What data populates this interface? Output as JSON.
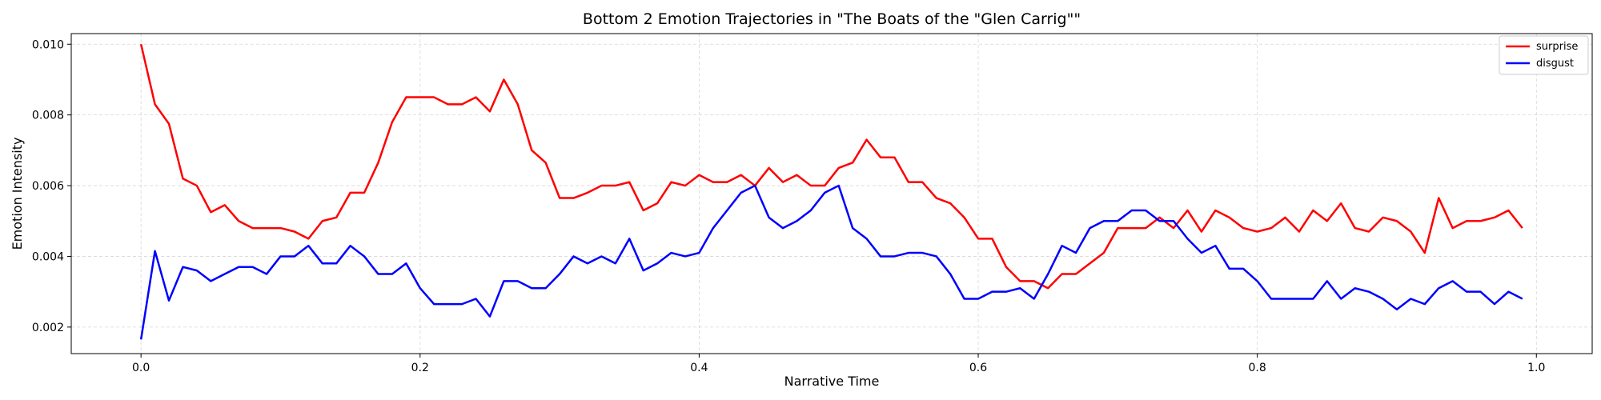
{
  "chart_data": {
    "type": "line",
    "title": "Bottom 2 Emotion Trajectories in \"The Boats of the \"Glen Carrig\"\"",
    "xlabel": "Narrative Time",
    "ylabel": "Emotion Intensity",
    "xlim": [
      -0.05,
      1.04
    ],
    "ylim": [
      0.00125,
      0.0103
    ],
    "xticks": [
      0.0,
      0.2,
      0.4,
      0.6,
      0.8,
      1.0
    ],
    "xtick_labels": [
      "0.0",
      "0.2",
      "0.4",
      "0.6",
      "0.8",
      "1.0"
    ],
    "yticks": [
      0.002,
      0.004,
      0.006,
      0.008,
      0.01
    ],
    "ytick_labels": [
      "0.002",
      "0.004",
      "0.006",
      "0.008",
      "0.010"
    ],
    "grid": true,
    "legend_position": "top-right",
    "x_step": 0.01,
    "series": [
      {
        "name": "surprise",
        "color": "#ff0000",
        "values": [
          0.01,
          0.0083,
          0.00775,
          0.0062,
          0.006,
          0.00525,
          0.00545,
          0.005,
          0.0048,
          0.0048,
          0.0048,
          0.0047,
          0.0045,
          0.005,
          0.0051,
          0.0058,
          0.0058,
          0.00665,
          0.0078,
          0.0085,
          0.0085,
          0.0085,
          0.0083,
          0.0083,
          0.0085,
          0.0081,
          0.009,
          0.0083,
          0.007,
          0.00665,
          0.00565,
          0.00565,
          0.0058,
          0.006,
          0.006,
          0.0061,
          0.0053,
          0.0055,
          0.0061,
          0.006,
          0.0063,
          0.0061,
          0.0061,
          0.0063,
          0.006,
          0.0065,
          0.0061,
          0.0063,
          0.006,
          0.006,
          0.0065,
          0.00665,
          0.0073,
          0.0068,
          0.0068,
          0.0061,
          0.0061,
          0.00565,
          0.0055,
          0.0051,
          0.0045,
          0.0045,
          0.0037,
          0.0033,
          0.0033,
          0.0031,
          0.0035,
          0.0035,
          0.0038,
          0.0041,
          0.0048,
          0.0048,
          0.0048,
          0.0051,
          0.0048,
          0.0053,
          0.0047,
          0.0053,
          0.0051,
          0.0048,
          0.0047,
          0.0048,
          0.0051,
          0.0047,
          0.0053,
          0.005,
          0.0055,
          0.0048,
          0.0047,
          0.0051,
          0.005,
          0.0047,
          0.0041,
          0.00565,
          0.0048,
          0.005,
          0.005,
          0.0051,
          0.0053,
          0.0048
        ]
      },
      {
        "name": "disgust",
        "color": "#0000ff",
        "values": [
          0.00165,
          0.00415,
          0.00275,
          0.0037,
          0.0036,
          0.0033,
          0.0035,
          0.0037,
          0.0037,
          0.0035,
          0.004,
          0.004,
          0.0043,
          0.0038,
          0.0038,
          0.0043,
          0.004,
          0.0035,
          0.0035,
          0.0038,
          0.0031,
          0.00265,
          0.00265,
          0.00265,
          0.0028,
          0.0023,
          0.0033,
          0.0033,
          0.0031,
          0.0031,
          0.0035,
          0.004,
          0.0038,
          0.004,
          0.0038,
          0.0045,
          0.0036,
          0.0038,
          0.0041,
          0.004,
          0.0041,
          0.0048,
          0.0053,
          0.0058,
          0.006,
          0.0051,
          0.0048,
          0.005,
          0.0053,
          0.0058,
          0.006,
          0.0048,
          0.0045,
          0.004,
          0.004,
          0.0041,
          0.0041,
          0.004,
          0.0035,
          0.0028,
          0.0028,
          0.003,
          0.003,
          0.0031,
          0.0028,
          0.0035,
          0.0043,
          0.0041,
          0.0048,
          0.005,
          0.005,
          0.0053,
          0.0053,
          0.005,
          0.005,
          0.0045,
          0.0041,
          0.0043,
          0.00365,
          0.00365,
          0.0033,
          0.0028,
          0.0028,
          0.0028,
          0.0028,
          0.0033,
          0.0028,
          0.0031,
          0.003,
          0.0028,
          0.0025,
          0.0028,
          0.00265,
          0.0031,
          0.0033,
          0.003,
          0.003,
          0.00265,
          0.003,
          0.0028
        ]
      }
    ]
  }
}
